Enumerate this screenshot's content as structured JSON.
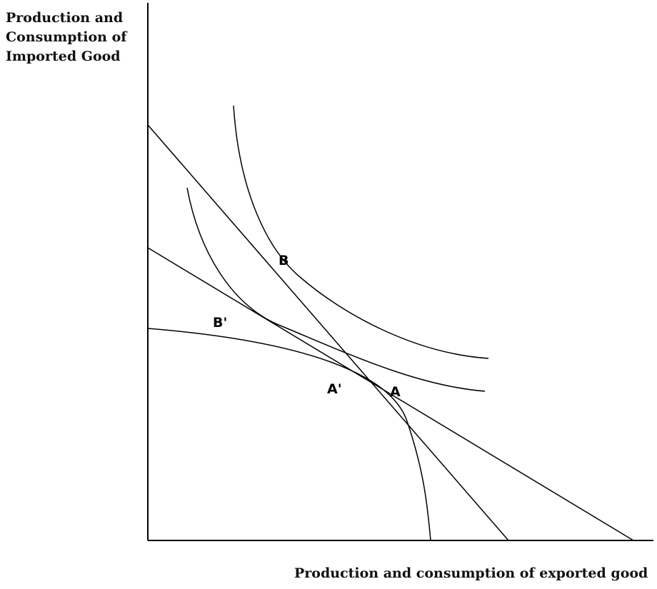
{
  "axes": {
    "y_label_lines": [
      "Production and",
      "Consumption of",
      "Imported Good"
    ],
    "x_label": "Production and consumption of exported good"
  },
  "points": {
    "B": "B",
    "B_prime": "B'",
    "A_prime": "A'",
    "A": "A"
  }
}
